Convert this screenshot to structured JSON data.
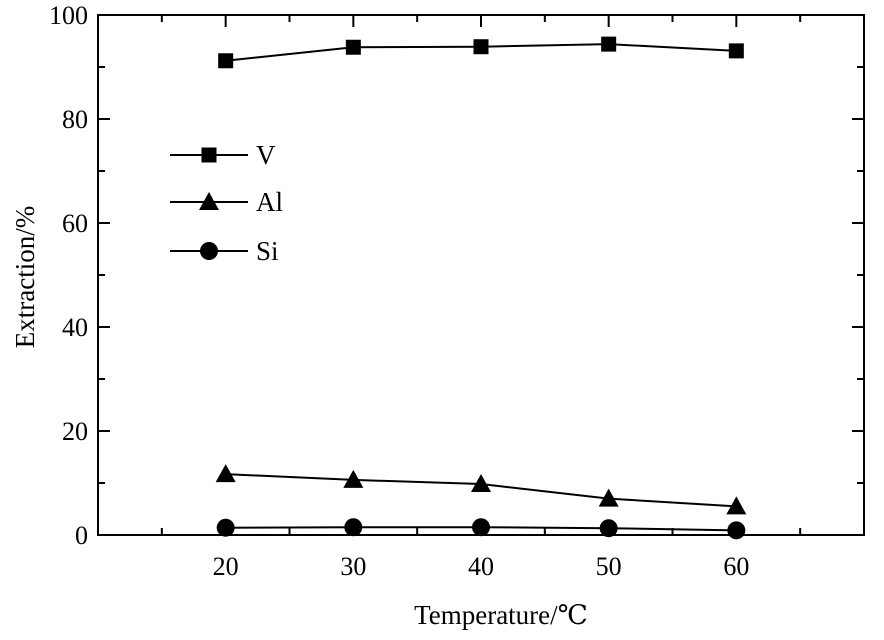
{
  "chart_data": {
    "type": "line",
    "title": "",
    "xlabel": "Temperature/℃",
    "ylabel": "Extraction/%",
    "x": [
      20,
      30,
      40,
      50,
      60
    ],
    "xlim": [
      10,
      70
    ],
    "ylim": [
      0,
      100
    ],
    "xticks": [
      "20",
      "30",
      "40",
      "50",
      "60"
    ],
    "yticks": [
      "0",
      "20",
      "40",
      "60",
      "80",
      "100"
    ],
    "grid": false,
    "legend_position": "upper-left",
    "series": [
      {
        "name": "V",
        "marker": "square",
        "values": [
          91.2,
          93.8,
          93.9,
          94.4,
          93.1
        ]
      },
      {
        "name": "Al",
        "marker": "triangle",
        "values": [
          11.7,
          10.6,
          9.8,
          7.0,
          5.5
        ]
      },
      {
        "name": "Si",
        "marker": "circle",
        "values": [
          1.4,
          1.5,
          1.5,
          1.3,
          0.9
        ]
      }
    ],
    "colors": {
      "line": "#000000",
      "axis": "#000000",
      "background": "#ffffff"
    }
  }
}
